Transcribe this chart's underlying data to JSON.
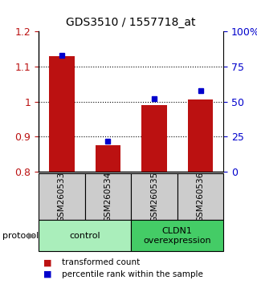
{
  "title": "GDS3510 / 1557718_at",
  "samples": [
    "GSM260533",
    "GSM260534",
    "GSM260535",
    "GSM260536"
  ],
  "bar_values": [
    1.13,
    0.875,
    0.99,
    1.005
  ],
  "percentile_values": [
    83,
    22,
    52,
    58
  ],
  "bar_color": "#bb1111",
  "marker_color": "#0000cc",
  "ylim_left": [
    0.8,
    1.2
  ],
  "ylim_right": [
    0,
    100
  ],
  "yticks_left": [
    0.8,
    0.9,
    1.0,
    1.1,
    1.2
  ],
  "ytick_labels_left": [
    "0.8",
    "0.9",
    "1",
    "1.1",
    "1.2"
  ],
  "yticks_right": [
    0,
    25,
    50,
    75,
    100
  ],
  "ytick_labels_right": [
    "0",
    "25",
    "50",
    "75",
    "100%"
  ],
  "grid_values": [
    0.9,
    1.0,
    1.1
  ],
  "groups": [
    {
      "label": "control",
      "indices": [
        0,
        1
      ],
      "color": "#aaeebb"
    },
    {
      "label": "CLDN1\noverexpression",
      "indices": [
        2,
        3
      ],
      "color": "#44cc66"
    }
  ],
  "protocol_label": "protocol",
  "legend_bar_label": "transformed count",
  "legend_marker_label": "percentile rank within the sample",
  "bar_width": 0.55,
  "figsize": [
    3.2,
    3.54
  ],
  "dpi": 100
}
